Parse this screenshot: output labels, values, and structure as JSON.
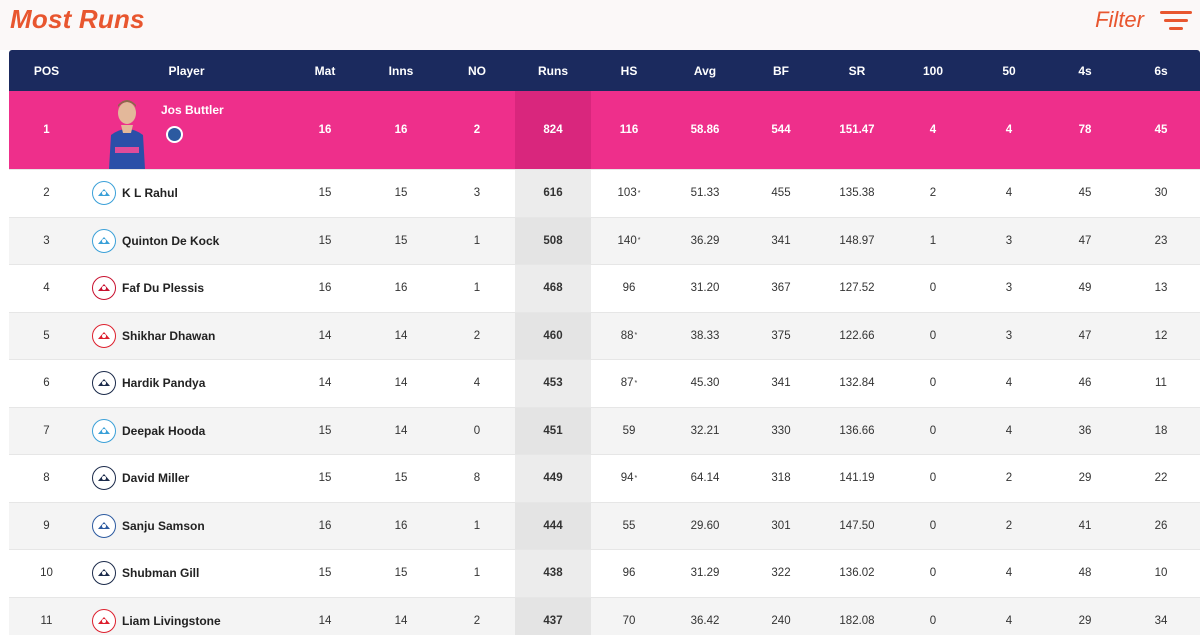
{
  "header": {
    "title": "Most Runs",
    "filter_label": "Filter"
  },
  "columns": [
    "POS",
    "Player",
    "Mat",
    "Inns",
    "NO",
    "Runs",
    "HS",
    "Avg",
    "BF",
    "SR",
    "100",
    "50",
    "4s",
    "6s"
  ],
  "rows": [
    {
      "pos": "1",
      "player": "Jos Buttler",
      "team": "rr",
      "mat": "16",
      "inns": "16",
      "no": "2",
      "runs": "824",
      "hs": "116",
      "hs_star": "",
      "avg": "58.86",
      "bf": "544",
      "sr": "151.47",
      "h100": "4",
      "h50": "4",
      "fours": "78",
      "sixes": "45"
    },
    {
      "pos": "2",
      "player": "K L Rahul",
      "team": "lsg",
      "mat": "15",
      "inns": "15",
      "no": "3",
      "runs": "616",
      "hs": "103",
      "hs_star": "*",
      "avg": "51.33",
      "bf": "455",
      "sr": "135.38",
      "h100": "2",
      "h50": "4",
      "fours": "45",
      "sixes": "30"
    },
    {
      "pos": "3",
      "player": "Quinton De Kock",
      "team": "lsg",
      "mat": "15",
      "inns": "15",
      "no": "1",
      "runs": "508",
      "hs": "140",
      "hs_star": "*",
      "avg": "36.29",
      "bf": "341",
      "sr": "148.97",
      "h100": "1",
      "h50": "3",
      "fours": "47",
      "sixes": "23"
    },
    {
      "pos": "4",
      "player": "Faf Du Plessis",
      "team": "rcb",
      "mat": "16",
      "inns": "16",
      "no": "1",
      "runs": "468",
      "hs": "96",
      "hs_star": "",
      "avg": "31.20",
      "bf": "367",
      "sr": "127.52",
      "h100": "0",
      "h50": "3",
      "fours": "49",
      "sixes": "13"
    },
    {
      "pos": "5",
      "player": "Shikhar Dhawan",
      "team": "pbks",
      "mat": "14",
      "inns": "14",
      "no": "2",
      "runs": "460",
      "hs": "88",
      "hs_star": "*",
      "avg": "38.33",
      "bf": "375",
      "sr": "122.66",
      "h100": "0",
      "h50": "3",
      "fours": "47",
      "sixes": "12"
    },
    {
      "pos": "6",
      "player": "Hardik Pandya",
      "team": "gt",
      "mat": "14",
      "inns": "14",
      "no": "4",
      "runs": "453",
      "hs": "87",
      "hs_star": "*",
      "avg": "45.30",
      "bf": "341",
      "sr": "132.84",
      "h100": "0",
      "h50": "4",
      "fours": "46",
      "sixes": "11"
    },
    {
      "pos": "7",
      "player": "Deepak Hooda",
      "team": "lsg",
      "mat": "15",
      "inns": "14",
      "no": "0",
      "runs": "451",
      "hs": "59",
      "hs_star": "",
      "avg": "32.21",
      "bf": "330",
      "sr": "136.66",
      "h100": "0",
      "h50": "4",
      "fours": "36",
      "sixes": "18"
    },
    {
      "pos": "8",
      "player": "David Miller",
      "team": "gt",
      "mat": "15",
      "inns": "15",
      "no": "8",
      "runs": "449",
      "hs": "94",
      "hs_star": "*",
      "avg": "64.14",
      "bf": "318",
      "sr": "141.19",
      "h100": "0",
      "h50": "2",
      "fours": "29",
      "sixes": "22"
    },
    {
      "pos": "9",
      "player": "Sanju Samson",
      "team": "rr",
      "mat": "16",
      "inns": "16",
      "no": "1",
      "runs": "444",
      "hs": "55",
      "hs_star": "",
      "avg": "29.60",
      "bf": "301",
      "sr": "147.50",
      "h100": "0",
      "h50": "2",
      "fours": "41",
      "sixes": "26"
    },
    {
      "pos": "10",
      "player": "Shubman Gill",
      "team": "gt",
      "mat": "15",
      "inns": "15",
      "no": "1",
      "runs": "438",
      "hs": "96",
      "hs_star": "",
      "avg": "31.29",
      "bf": "322",
      "sr": "136.02",
      "h100": "0",
      "h50": "4",
      "fours": "48",
      "sixes": "10"
    },
    {
      "pos": "11",
      "player": "Liam Livingstone",
      "team": "pbks",
      "mat": "14",
      "inns": "14",
      "no": "2",
      "runs": "437",
      "hs": "70",
      "hs_star": "",
      "avg": "36.42",
      "bf": "240",
      "sr": "182.08",
      "h100": "0",
      "h50": "4",
      "fours": "29",
      "sixes": "34"
    }
  ],
  "team_colors": {
    "rr": "#2c5aa0",
    "lsg": "#3aa0d8",
    "rcb": "#c8102e",
    "pbks": "#dd1f2d",
    "gt": "#1b2a4a"
  },
  "theme": {
    "accent": "#e8562f",
    "header_bg": "#1b2a5e",
    "highlight_row": "#ee2f8b"
  }
}
